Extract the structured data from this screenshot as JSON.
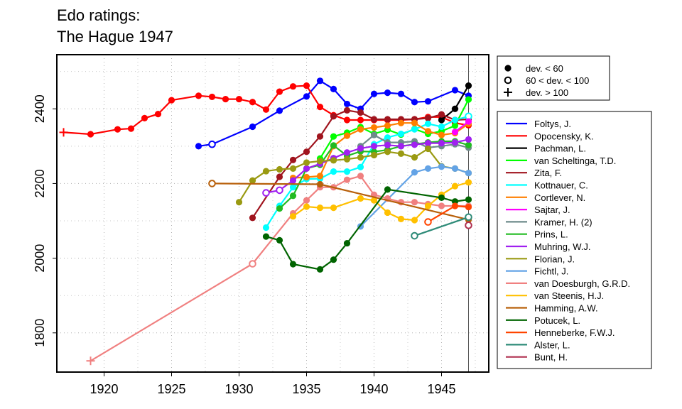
{
  "chart_data": {
    "type": "line",
    "title_lines": [
      "Edo ratings:",
      "The Hague 1947"
    ],
    "xlabel": "",
    "ylabel": "",
    "xlim": [
      1916.5,
      1948.5
    ],
    "ylim": [
      1695,
      2545
    ],
    "x_ticks": [
      1920,
      1925,
      1930,
      1935,
      1940,
      1945
    ],
    "y_ticks": [
      1800,
      2000,
      2200,
      2400
    ],
    "grid": true,
    "event_year": 1947,
    "marker_legend": [
      {
        "symbol": "filled",
        "label": "dev. < 60"
      },
      {
        "symbol": "open",
        "label": "60 < dev. < 100"
      },
      {
        "symbol": "plus",
        "label": "dev. > 100"
      }
    ],
    "series": [
      {
        "name": "Foltys, J.",
        "color": "#0000ff",
        "points": [
          [
            1927,
            2300,
            "f"
          ],
          [
            1928,
            2305,
            "o"
          ],
          [
            1931,
            2352,
            "f"
          ],
          [
            1933,
            2395,
            "f"
          ],
          [
            1935,
            2433,
            "f"
          ],
          [
            1936,
            2475,
            "f"
          ],
          [
            1937,
            2453,
            "f"
          ],
          [
            1938,
            2413,
            "f"
          ],
          [
            1939,
            2400,
            "f"
          ],
          [
            1940,
            2440,
            "f"
          ],
          [
            1941,
            2443,
            "f"
          ],
          [
            1942,
            2440,
            "f"
          ],
          [
            1943,
            2418,
            "f"
          ],
          [
            1944,
            2420,
            "f"
          ],
          [
            1946,
            2450,
            "f"
          ],
          [
            1947,
            2435,
            "f"
          ]
        ]
      },
      {
        "name": "Opocensky, K.",
        "color": "#ff0000",
        "points": [
          [
            1917,
            2337,
            "n"
          ],
          [
            1919,
            2332,
            "f"
          ],
          [
            1921,
            2345,
            "f"
          ],
          [
            1922,
            2347,
            "f"
          ],
          [
            1923,
            2375,
            "f"
          ],
          [
            1924,
            2386,
            "f"
          ],
          [
            1925,
            2423,
            "f"
          ],
          [
            1927,
            2435,
            "f"
          ],
          [
            1928,
            2432,
            "f"
          ],
          [
            1929,
            2426,
            "f"
          ],
          [
            1930,
            2426,
            "f"
          ],
          [
            1931,
            2418,
            "f"
          ],
          [
            1932,
            2398,
            "f"
          ],
          [
            1933,
            2446,
            "f"
          ],
          [
            1934,
            2460,
            "f"
          ],
          [
            1935,
            2462,
            "f"
          ],
          [
            1936,
            2405,
            "f"
          ],
          [
            1937,
            2383,
            "f"
          ],
          [
            1938,
            2370,
            "f"
          ],
          [
            1939,
            2370,
            "f"
          ],
          [
            1940,
            2370,
            "f"
          ],
          [
            1941,
            2370,
            "f"
          ],
          [
            1942,
            2370,
            "f"
          ],
          [
            1943,
            2372,
            "f"
          ],
          [
            1944,
            2378,
            "f"
          ],
          [
            1945,
            2378,
            "f"
          ],
          [
            1946,
            2362,
            "f"
          ],
          [
            1947,
            2356,
            "f"
          ]
        ]
      },
      {
        "name": "Pachman, L.",
        "color": "#000000",
        "points": [
          [
            1945,
            2370,
            "f"
          ],
          [
            1946,
            2400,
            "f"
          ],
          [
            1947,
            2462,
            "f"
          ]
        ]
      },
      {
        "name": "van Scheltinga, T.D.",
        "color": "#00ff00",
        "points": [
          [
            1936,
            2267,
            "f"
          ],
          [
            1937,
            2326,
            "f"
          ],
          [
            1938,
            2336,
            "f"
          ],
          [
            1939,
            2351,
            "f"
          ],
          [
            1940,
            2333,
            "f"
          ],
          [
            1941,
            2344,
            "f"
          ],
          [
            1942,
            2331,
            "f"
          ],
          [
            1943,
            2346,
            "f"
          ],
          [
            1944,
            2333,
            "f"
          ],
          [
            1945,
            2340,
            "f"
          ],
          [
            1946,
            2355,
            "f"
          ],
          [
            1947,
            2425,
            "f"
          ]
        ]
      },
      {
        "name": "Zita, F.",
        "color": "#a0141e",
        "points": [
          [
            1931,
            2108,
            "f"
          ],
          [
            1933,
            2218,
            "f"
          ],
          [
            1934,
            2263,
            "f"
          ],
          [
            1935,
            2285,
            "f"
          ],
          [
            1936,
            2326,
            "f"
          ],
          [
            1937,
            2380,
            "f"
          ],
          [
            1938,
            2396,
            "f"
          ],
          [
            1939,
            2390,
            "f"
          ],
          [
            1940,
            2372,
            "f"
          ],
          [
            1941,
            2372,
            "f"
          ],
          [
            1942,
            2372,
            "f"
          ],
          [
            1943,
            2372,
            "f"
          ],
          [
            1944,
            2375,
            "f"
          ],
          [
            1945,
            2385,
            "f"
          ],
          [
            1946,
            2370,
            "f"
          ],
          [
            1947,
            2372,
            "f"
          ]
        ]
      },
      {
        "name": "Kottnauer, C.",
        "color": "#00ffff",
        "points": [
          [
            1932,
            2082,
            "f"
          ],
          [
            1933,
            2140,
            "f"
          ],
          [
            1934,
            2190,
            "f"
          ],
          [
            1935,
            2212,
            "f"
          ],
          [
            1936,
            2213,
            "f"
          ],
          [
            1937,
            2232,
            "f"
          ],
          [
            1938,
            2232,
            "f"
          ],
          [
            1939,
            2244,
            "f"
          ],
          [
            1940,
            2305,
            "f"
          ],
          [
            1941,
            2323,
            "f"
          ],
          [
            1942,
            2333,
            "f"
          ],
          [
            1943,
            2345,
            "f"
          ],
          [
            1944,
            2360,
            "f"
          ],
          [
            1945,
            2352,
            "f"
          ],
          [
            1946,
            2370,
            "f"
          ],
          [
            1947,
            2380,
            "o"
          ]
        ]
      },
      {
        "name": "Cortlever, N.",
        "color": "#ff7f00",
        "points": [
          [
            1934,
            2215,
            "f"
          ],
          [
            1935,
            2217,
            "f"
          ],
          [
            1936,
            2220,
            "f"
          ],
          [
            1937,
            2300,
            "f"
          ],
          [
            1938,
            2328,
            "f"
          ],
          [
            1939,
            2345,
            "f"
          ],
          [
            1940,
            2350,
            "f"
          ],
          [
            1941,
            2355,
            "f"
          ],
          [
            1942,
            2362,
            "f"
          ],
          [
            1943,
            2362,
            "f"
          ],
          [
            1944,
            2340,
            "f"
          ],
          [
            1945,
            2330,
            "f"
          ],
          [
            1946,
            2335,
            "f"
          ],
          [
            1947,
            2360,
            "f"
          ]
        ]
      },
      {
        "name": "Sajtar, J.",
        "color": "#ff00ff",
        "points": [
          [
            1946,
            2338,
            "f"
          ],
          [
            1947,
            2366,
            "f"
          ]
        ]
      },
      {
        "name": "Kramer, H. (2)",
        "color": "#6e8b8b",
        "points": [
          [
            1939,
            2300,
            "f"
          ],
          [
            1940,
            2330,
            "f"
          ],
          [
            1941,
            2310,
            "f"
          ],
          [
            1942,
            2310,
            "f"
          ],
          [
            1943,
            2313,
            "f"
          ],
          [
            1944,
            2296,
            "f"
          ],
          [
            1945,
            2300,
            "f"
          ],
          [
            1946,
            2305,
            "f"
          ],
          [
            1947,
            2296,
            "f"
          ]
        ]
      },
      {
        "name": "Prins, L.",
        "color": "#22bb22",
        "points": [
          [
            1933,
            2133,
            "f"
          ],
          [
            1934,
            2167,
            "f"
          ],
          [
            1935,
            2240,
            "f"
          ],
          [
            1936,
            2250,
            "f"
          ],
          [
            1937,
            2302,
            "f"
          ],
          [
            1938,
            2274,
            "f"
          ],
          [
            1939,
            2286,
            "f"
          ],
          [
            1940,
            2285,
            "f"
          ],
          [
            1941,
            2290,
            "f"
          ],
          [
            1942,
            2300,
            "f"
          ],
          [
            1943,
            2305,
            "f"
          ],
          [
            1944,
            2310,
            "f"
          ],
          [
            1945,
            2313,
            "f"
          ],
          [
            1946,
            2313,
            "f"
          ],
          [
            1947,
            2303,
            "f"
          ]
        ]
      },
      {
        "name": "Muhring, W.J.",
        "color": "#a020f0",
        "points": [
          [
            1932,
            2175,
            "o"
          ],
          [
            1933,
            2182,
            "o"
          ],
          [
            1934,
            2208,
            "f"
          ],
          [
            1935,
            2240,
            "f"
          ],
          [
            1936,
            2253,
            "f"
          ],
          [
            1937,
            2268,
            "f"
          ],
          [
            1938,
            2283,
            "f"
          ],
          [
            1939,
            2294,
            "f"
          ],
          [
            1940,
            2300,
            "f"
          ],
          [
            1941,
            2303,
            "f"
          ],
          [
            1942,
            2300,
            "f"
          ],
          [
            1943,
            2304,
            "f"
          ],
          [
            1944,
            2308,
            "f"
          ],
          [
            1945,
            2308,
            "f"
          ],
          [
            1946,
            2310,
            "f"
          ],
          [
            1947,
            2318,
            "f"
          ]
        ]
      },
      {
        "name": "Florian, J.",
        "color": "#9a9a12",
        "points": [
          [
            1930,
            2150,
            "f"
          ],
          [
            1931,
            2208,
            "f"
          ],
          [
            1932,
            2233,
            "f"
          ],
          [
            1933,
            2238,
            "f"
          ],
          [
            1934,
            2240,
            "f"
          ],
          [
            1935,
            2256,
            "f"
          ],
          [
            1936,
            2260,
            "f"
          ],
          [
            1937,
            2262,
            "f"
          ],
          [
            1938,
            2265,
            "f"
          ],
          [
            1939,
            2270,
            "f"
          ],
          [
            1940,
            2276,
            "f"
          ],
          [
            1941,
            2285,
            "f"
          ],
          [
            1942,
            2280,
            "f"
          ],
          [
            1943,
            2270,
            "f"
          ],
          [
            1944,
            2293,
            "f"
          ],
          [
            1945,
            2246,
            "f"
          ],
          [
            1946,
            2240,
            "f"
          ],
          [
            1947,
            2228,
            "f"
          ]
        ]
      },
      {
        "name": "Fichtl, J.",
        "color": "#63a3e6",
        "points": [
          [
            1939,
            2085,
            "f"
          ],
          [
            1943,
            2230,
            "f"
          ],
          [
            1944,
            2240,
            "f"
          ],
          [
            1945,
            2245,
            "f"
          ],
          [
            1946,
            2240,
            "f"
          ],
          [
            1947,
            2228,
            "f"
          ]
        ]
      },
      {
        "name": "van Doesburgh, G.R.D.",
        "color": "#f08080",
        "points": [
          [
            1919,
            1725,
            "n"
          ],
          [
            1931,
            1985,
            "o"
          ],
          [
            1934,
            2120,
            "f"
          ],
          [
            1935,
            2155,
            "f"
          ],
          [
            1936,
            2190,
            "f"
          ],
          [
            1937,
            2190,
            "f"
          ],
          [
            1938,
            2210,
            "f"
          ],
          [
            1939,
            2220,
            "f"
          ],
          [
            1940,
            2170,
            "f"
          ],
          [
            1941,
            2160,
            "f"
          ],
          [
            1942,
            2150,
            "f"
          ],
          [
            1943,
            2150,
            "f"
          ],
          [
            1944,
            2145,
            "f"
          ],
          [
            1945,
            2140,
            "f"
          ],
          [
            1946,
            2140,
            "f"
          ],
          [
            1947,
            2140,
            "f"
          ]
        ]
      },
      {
        "name": "van Steenis, H.J.",
        "color": "#ffc000",
        "points": [
          [
            1934,
            2112,
            "f"
          ],
          [
            1935,
            2138,
            "f"
          ],
          [
            1936,
            2135,
            "f"
          ],
          [
            1937,
            2135,
            "f"
          ],
          [
            1939,
            2160,
            "f"
          ],
          [
            1940,
            2155,
            "f"
          ],
          [
            1941,
            2122,
            "f"
          ],
          [
            1942,
            2105,
            "f"
          ],
          [
            1943,
            2102,
            "f"
          ],
          [
            1944,
            2140,
            "f"
          ],
          [
            1945,
            2170,
            "f"
          ],
          [
            1946,
            2193,
            "f"
          ],
          [
            1947,
            2203,
            "f"
          ]
        ]
      },
      {
        "name": "Hamming, A.W.",
        "color": "#b8600b",
        "points": [
          [
            1928,
            2200,
            "o"
          ],
          [
            1936,
            2198,
            "f"
          ],
          [
            1947,
            2103,
            "f"
          ]
        ]
      },
      {
        "name": "Potucek, L.",
        "color": "#006400",
        "points": [
          [
            1932,
            2058,
            "f"
          ],
          [
            1933,
            2048,
            "f"
          ],
          [
            1934,
            1984,
            "f"
          ],
          [
            1936,
            1970,
            "f"
          ],
          [
            1937,
            1996,
            "f"
          ],
          [
            1938,
            2040,
            "f"
          ],
          [
            1941,
            2184,
            "f"
          ],
          [
            1945,
            2162,
            "f"
          ],
          [
            1946,
            2152,
            "f"
          ],
          [
            1947,
            2157,
            "f"
          ]
        ]
      },
      {
        "name": "Henneberke, F.W.J.",
        "color": "#ff4500",
        "points": [
          [
            1944,
            2097,
            "o"
          ],
          [
            1946,
            2140,
            "f"
          ],
          [
            1947,
            2137,
            "f"
          ]
        ]
      },
      {
        "name": "Alster, L.",
        "color": "#2e8b78",
        "points": [
          [
            1943,
            2060,
            "o"
          ],
          [
            1947,
            2110,
            "o"
          ]
        ]
      },
      {
        "name": "Bunt, H.",
        "color": "#b03050",
        "points": [
          [
            1947,
            2088,
            "o"
          ]
        ]
      }
    ]
  }
}
